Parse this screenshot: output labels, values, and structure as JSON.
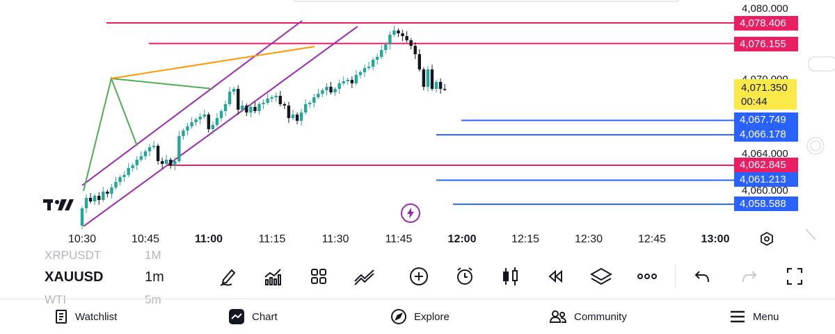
{
  "chart_data": {
    "type": "candlestick",
    "symbol": "XAUUSD",
    "timeframe": "1m",
    "x_ticks": [
      "10:30",
      "10:45",
      "11:00",
      "11:15",
      "11:30",
      "11:45",
      "12:00",
      "12:15",
      "12:30",
      "12:45",
      "13:00"
    ],
    "y_ticks": [
      "4,080.000",
      "4,070.000",
      "4,064.000",
      "4,060.000"
    ],
    "horizontal_levels": [
      {
        "price": "4,078.406",
        "color": "#e91e63"
      },
      {
        "price": "4,076.155",
        "color": "#e91e63"
      },
      {
        "price": "4,067.749",
        "color": "#2962ff"
      },
      {
        "price": "4,066.178",
        "color": "#2962ff"
      },
      {
        "price": "4,062.845",
        "color": "#e91e63"
      },
      {
        "price": "4,061.213",
        "color": "#2962ff"
      },
      {
        "price": "4,058.588",
        "color": "#2962ff"
      }
    ],
    "current_price": "4,071.350",
    "countdown": "00:44",
    "up_color": "#26a69a",
    "down_color": "#131722",
    "channel_color": "#9c27b0",
    "pattern_color": "#4caf50",
    "trend_color": "#ff9800"
  },
  "symbols": [
    {
      "name": "XRPUSDT",
      "tf": "1M"
    },
    {
      "name": "XAUUSD",
      "tf": "1m"
    },
    {
      "name": "WTI",
      "tf": "5m"
    }
  ],
  "toolbar": [
    "pencil-icon",
    "indicators-icon",
    "templates-icon",
    "drawings-icon",
    "add-icon",
    "alert-icon",
    "candle-type-icon",
    "replay-icon",
    "layers-icon",
    "more-icon",
    "undo-icon",
    "redo-icon",
    "fullscreen-icon"
  ],
  "nav": {
    "watchlist": "Watchlist",
    "chart": "Chart",
    "explore": "Explore",
    "community": "Community",
    "menu": "Menu"
  }
}
